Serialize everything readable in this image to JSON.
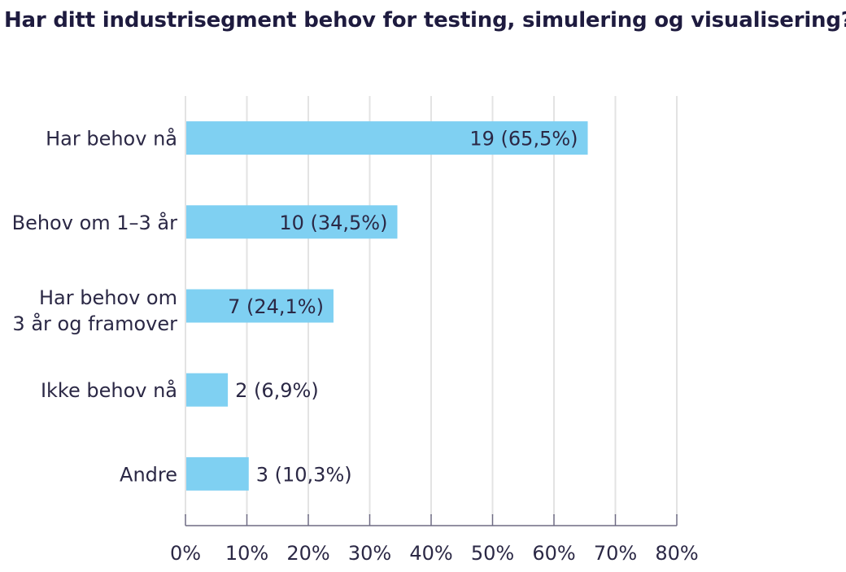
{
  "chart_data": {
    "type": "bar",
    "orientation": "horizontal",
    "title": "Har ditt industrisegment behov for testing, simulering og visualisering?",
    "categories": [
      [
        "Har behov nå"
      ],
      [
        "Behov om 1–3 år"
      ],
      [
        "Har behov om",
        "3 år og framover"
      ],
      [
        "Ikke behov nå"
      ],
      [
        "Andre"
      ]
    ],
    "counts": [
      19,
      10,
      7,
      2,
      3
    ],
    "values": [
      65.5,
      34.5,
      24.1,
      6.9,
      10.3
    ],
    "data_labels": [
      "19 (65,5%)",
      "10 (34,5%)",
      "7 (24,1%)",
      "2 (6,9%)",
      "3 (10,3%)"
    ],
    "x_ticks": [
      "0%",
      "10%",
      "20%",
      "30%",
      "40%",
      "50%",
      "60%",
      "70%",
      "80%"
    ],
    "xlim": [
      0,
      80
    ],
    "grid": true,
    "bar_color": "#7fd0f2",
    "grid_color": "#e3e3e3",
    "axis_color": "#6f6c84",
    "text_color": "#2b2845",
    "title_color": "#1e1b3f"
  }
}
